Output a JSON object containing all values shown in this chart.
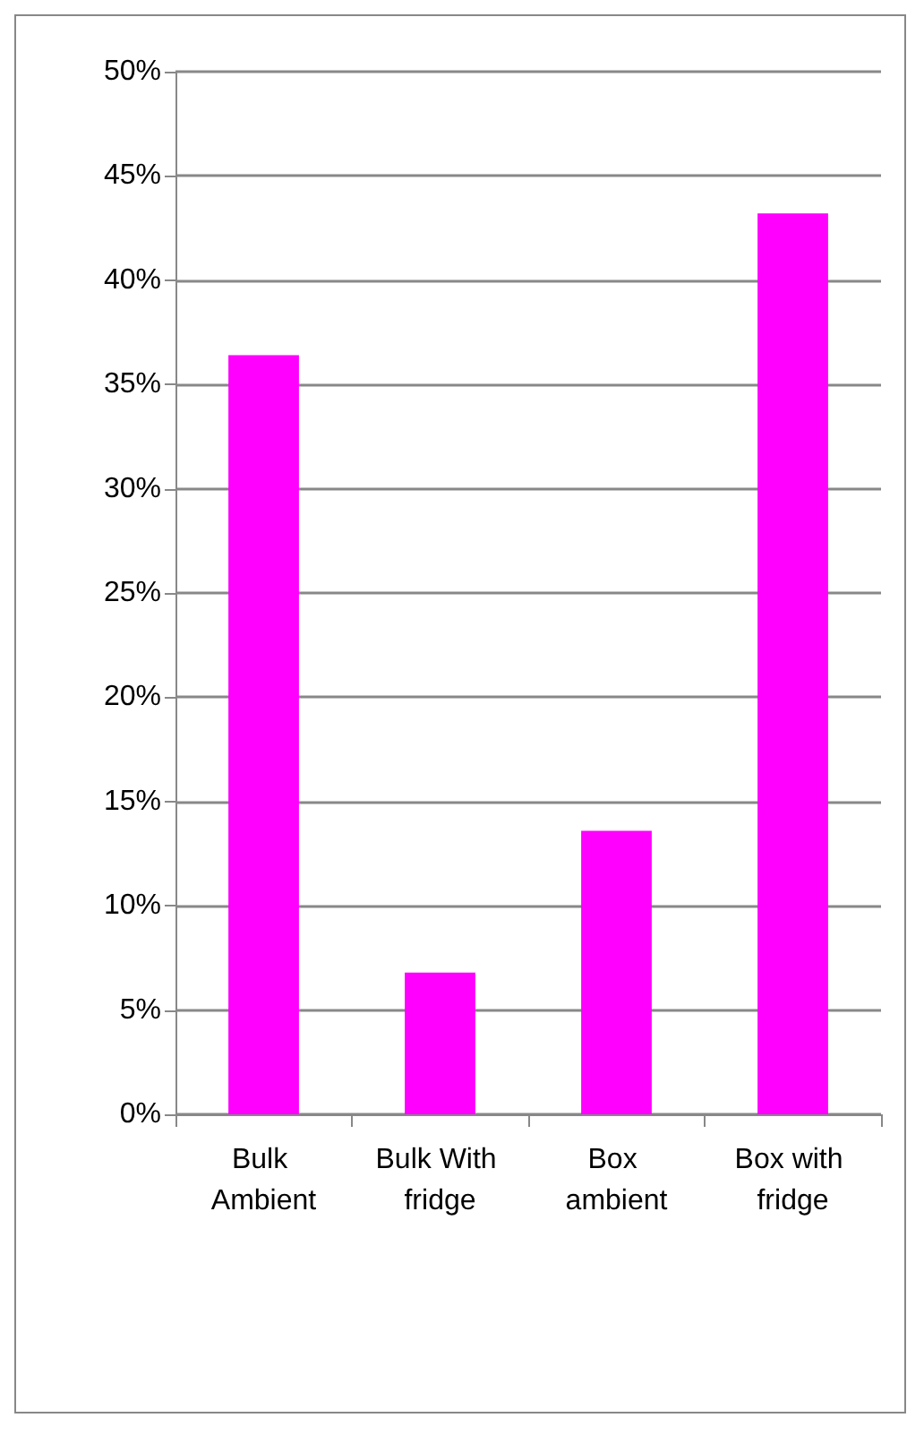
{
  "chart_data": {
    "type": "bar",
    "categories": [
      "Bulk Ambient",
      "Bulk With fridge",
      "Box ambient",
      "Box with fridge"
    ],
    "values": [
      36.4,
      6.8,
      13.6,
      43.2
    ],
    "color": "#ff00ff",
    "ylim": [
      0,
      50
    ],
    "yticks": [
      {
        "value": 0,
        "label": "0%"
      },
      {
        "value": 5,
        "label": "5%"
      },
      {
        "value": 10,
        "label": "10%"
      },
      {
        "value": 15,
        "label": "15%"
      },
      {
        "value": 20,
        "label": "20%"
      },
      {
        "value": 25,
        "label": "25%"
      },
      {
        "value": 30,
        "label": "30%"
      },
      {
        "value": 35,
        "label": "35%"
      },
      {
        "value": 40,
        "label": "40%"
      },
      {
        "value": 45,
        "label": "45%"
      },
      {
        "value": 50,
        "label": "50%"
      }
    ],
    "grid": true
  }
}
